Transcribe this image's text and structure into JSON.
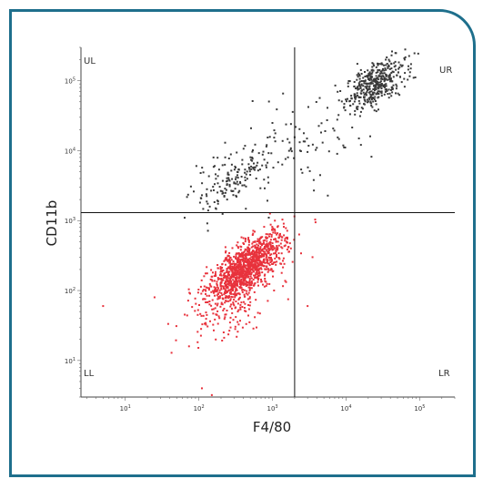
{
  "chart_data": {
    "type": "scatter",
    "title": "",
    "xlabel": "F4/80",
    "ylabel": "CD11b",
    "xscale": "log",
    "yscale": "log",
    "xlim": [
      2.5,
      300000
    ],
    "ylim": [
      3,
      300000
    ],
    "x_ticks": [
      {
        "base": "10",
        "exp": "1",
        "value": 10
      },
      {
        "base": "10",
        "exp": "2",
        "value": 100
      },
      {
        "base": "10",
        "exp": "3",
        "value": 1000
      },
      {
        "base": "10",
        "exp": "4",
        "value": 10000
      },
      {
        "base": "10",
        "exp": "5",
        "value": 100000
      }
    ],
    "y_ticks": [
      {
        "base": "10",
        "exp": "1",
        "value": 10
      },
      {
        "base": "10",
        "exp": "2",
        "value": 100
      },
      {
        "base": "10",
        "exp": "3",
        "value": 1000
      },
      {
        "base": "10",
        "exp": "4",
        "value": 10000
      },
      {
        "base": "10",
        "exp": "5",
        "value": 100000
      }
    ],
    "gates": {
      "x": 2000,
      "y": 1300
    },
    "quadrants": {
      "UL": "UL",
      "UR": "UR",
      "LL": "LL",
      "LR": "LR"
    },
    "series": [
      {
        "color": "#3a3a3a",
        "clusters": [
          {
            "cx": 25000,
            "cy": 90000,
            "sx": 0.2,
            "sy": 0.18,
            "rho": 0.55,
            "n": 420
          },
          {
            "cx": 300,
            "cy": 4000,
            "sx": 0.3,
            "sy": 0.24,
            "rho": 0.6,
            "n": 170
          },
          {
            "cx": 2500,
            "cy": 10000,
            "sx": 0.45,
            "sy": 0.35,
            "rho": 0.4,
            "n": 80
          }
        ]
      },
      {
        "color": "#e8323c",
        "clusters": [
          {
            "cx": 450,
            "cy": 220,
            "sx": 0.26,
            "sy": 0.24,
            "rho": 0.72,
            "n": 1200
          },
          {
            "cx": 250,
            "cy": 60,
            "sx": 0.3,
            "sy": 0.28,
            "rho": 0.5,
            "n": 160
          }
        ]
      }
    ],
    "grid": false,
    "legend": "none"
  }
}
